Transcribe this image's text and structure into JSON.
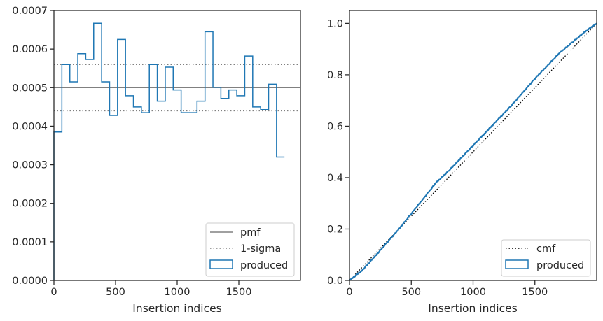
{
  "chart_data": [
    {
      "type": "line",
      "xlabel": "Insertion indices",
      "ylabel": "",
      "xlim": [
        0,
        2000
      ],
      "ylim": [
        0,
        0.0007
      ],
      "xticks": [
        0,
        500,
        1000,
        1500
      ],
      "xtick_labels": [
        "0",
        "500",
        "1000",
        "1500"
      ],
      "yticks": [
        0,
        0.0001,
        0.0002,
        0.0003,
        0.0004,
        0.0005,
        0.0006,
        0.0007
      ],
      "ytick_labels": [
        "0.0000",
        "0.0001",
        "0.0002",
        "0.0003",
        "0.0004",
        "0.0005",
        "0.0006",
        "0.0007"
      ],
      "legend_position": "lower-right",
      "legend": [
        "pmf",
        "1-sigma",
        "produced"
      ],
      "pmf": 0.0005,
      "sigma_band": [
        0.00044,
        0.00056
      ],
      "hist_bin_width": 64.5,
      "hist_values": [
        0.000385,
        0.00056,
        0.000515,
        0.000588,
        0.000573,
        0.000667,
        0.000515,
        0.000428,
        0.000625,
        0.000479,
        0.00045,
        0.000435,
        0.00056,
        0.000465,
        0.000553,
        0.000494,
        0.000435,
        0.000435,
        0.000465,
        0.000645,
        0.000501,
        0.000472,
        0.000494,
        0.000479,
        0.000582,
        0.00045,
        0.000443,
        0.000509,
        0.00032
      ],
      "colors": {
        "pmf": "#808080",
        "sigma": "#808080",
        "produced": "#1f77b4"
      }
    },
    {
      "type": "line",
      "xlabel": "Insertion indices",
      "ylabel": "",
      "xlim": [
        0,
        2000
      ],
      "ylim": [
        0,
        1.05
      ],
      "xticks": [
        0,
        500,
        1000,
        1500
      ],
      "xtick_labels": [
        "0",
        "500",
        "1000",
        "1500"
      ],
      "yticks": [
        0,
        0.2,
        0.4,
        0.6,
        0.8,
        1.0
      ],
      "ytick_labels": [
        "0.0",
        "0.2",
        "0.4",
        "0.6",
        "0.8",
        "1.0"
      ],
      "legend_position": "lower-right",
      "legend": [
        "cmf",
        "produced"
      ],
      "cmf": {
        "x": [
          0,
          2000
        ],
        "y": [
          0,
          1
        ]
      },
      "produced": {
        "x": [
          0,
          100,
          200,
          300,
          400,
          500,
          600,
          700,
          800,
          900,
          1000,
          1100,
          1200,
          1300,
          1400,
          1500,
          1600,
          1700,
          1800,
          1900,
          2000
        ],
        "y": [
          0,
          0.038,
          0.09,
          0.145,
          0.2,
          0.26,
          0.32,
          0.38,
          0.425,
          0.475,
          0.525,
          0.575,
          0.625,
          0.675,
          0.73,
          0.785,
          0.835,
          0.885,
          0.925,
          0.965,
          1.0
        ]
      },
      "colors": {
        "cmf": "#000000",
        "produced": "#1f77b4"
      }
    }
  ]
}
